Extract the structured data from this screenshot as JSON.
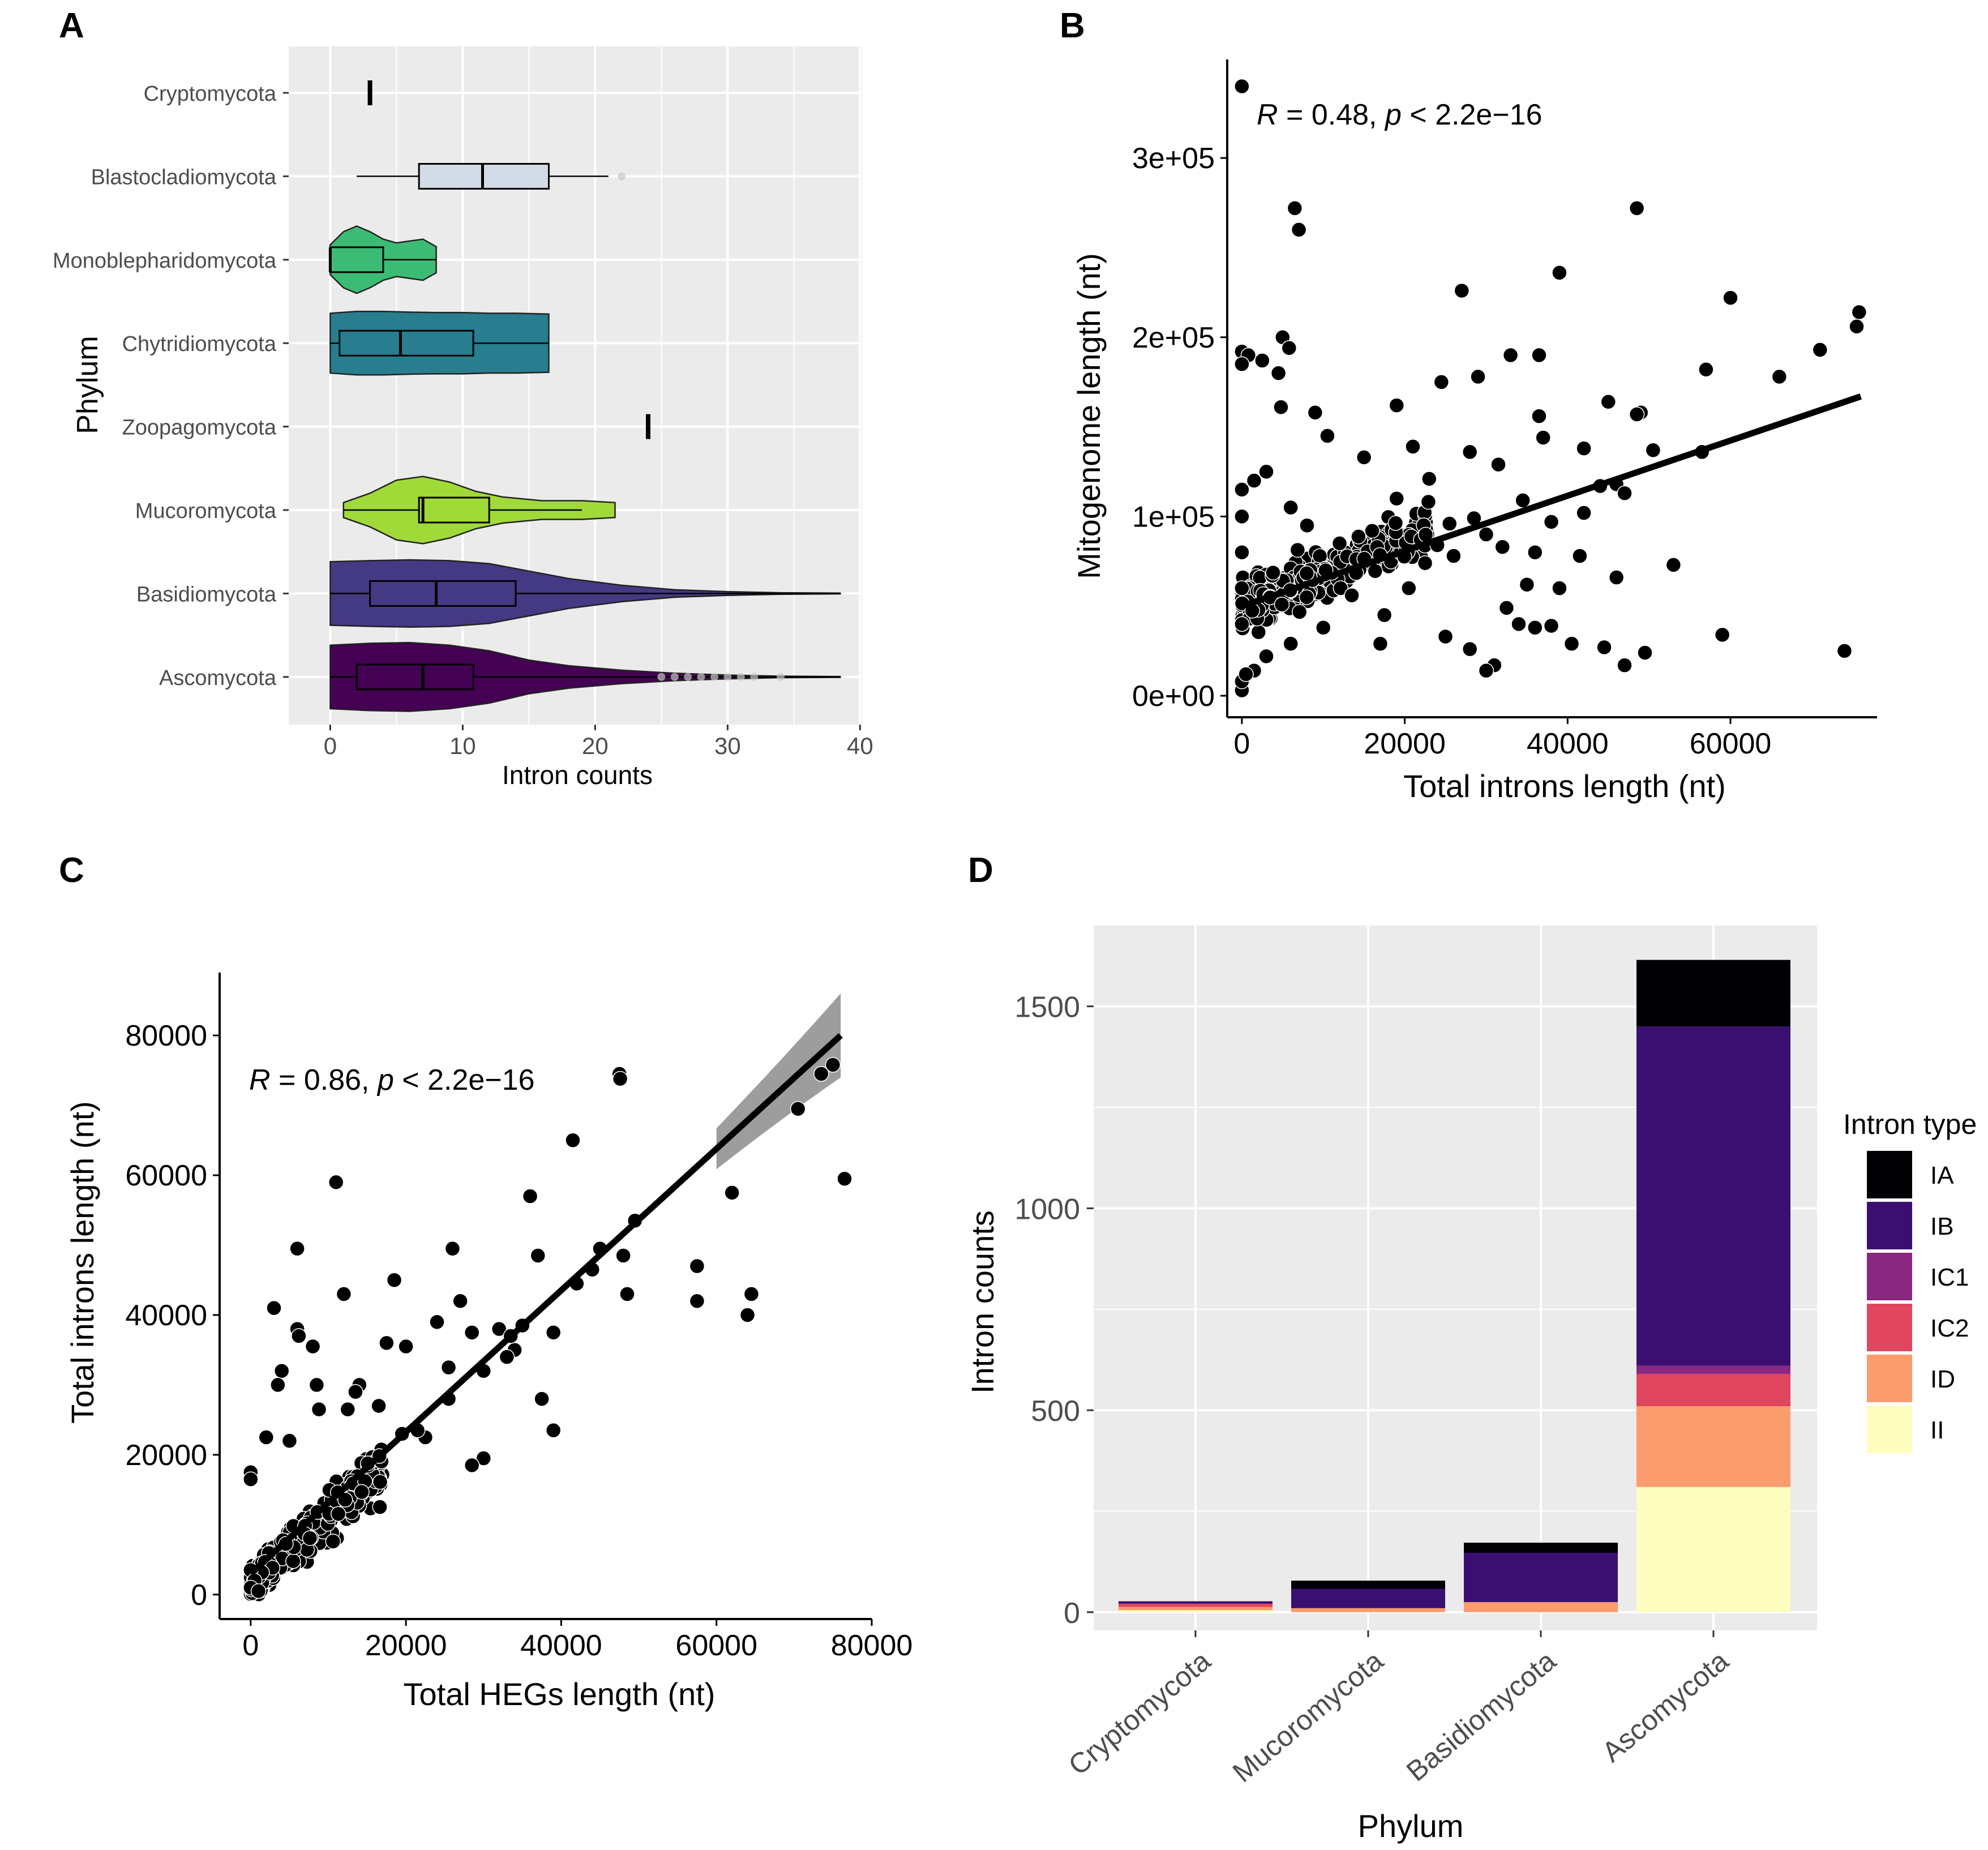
{
  "chart_data": [
    {
      "panel": "A",
      "type": "violin",
      "xlabel": "Intron counts",
      "ylabel": "Phylum",
      "xlim": [
        -1,
        40
      ],
      "xticks": [
        0,
        10,
        20,
        30,
        40
      ],
      "grid": true,
      "categories": [
        {
          "name": "Cryptomycota",
          "color": "#000000",
          "single": 3
        },
        {
          "name": "Blastocladiomycota",
          "color": "#d3dbe6",
          "box": {
            "min": 2,
            "q1": 6.7,
            "median": 11.5,
            "q3": 16.5,
            "max": 21
          },
          "outliers": [
            22
          ]
        },
        {
          "name": "Monoblepharidomycota",
          "color": "#3cbb75",
          "violin": [
            [
              0,
              0.4
            ],
            [
              1,
              0.75
            ],
            [
              2,
              0.9
            ],
            [
              3,
              0.75
            ],
            [
              4,
              0.55
            ],
            [
              5,
              0.45
            ],
            [
              6,
              0.5
            ],
            [
              7,
              0.55
            ],
            [
              8,
              0.35
            ]
          ],
          "box": {
            "min": 0,
            "q1": 0,
            "median": 0,
            "q3": 4,
            "max": 8
          }
        },
        {
          "name": "Chytridiomycota",
          "color": "#287d8e",
          "violin": [
            [
              0,
              0.8
            ],
            [
              2,
              0.85
            ],
            [
              4,
              0.85
            ],
            [
              6,
              0.83
            ],
            [
              8,
              0.82
            ],
            [
              10,
              0.82
            ],
            [
              12,
              0.8
            ],
            [
              14,
              0.8
            ],
            [
              16.5,
              0.78
            ]
          ],
          "box": {
            "min": 0,
            "q1": 0.7,
            "median": 5.3,
            "q3": 10.8,
            "max": 16.5
          }
        },
        {
          "name": "Zoopagomycota",
          "color": "#000000",
          "single": 24
        },
        {
          "name": "Mucoromycota",
          "color": "#a0da39",
          "violin": [
            [
              1,
              0.2
            ],
            [
              3,
              0.45
            ],
            [
              5,
              0.8
            ],
            [
              7,
              0.9
            ],
            [
              9,
              0.75
            ],
            [
              11,
              0.5
            ],
            [
              13,
              0.35
            ],
            [
              16,
              0.25
            ],
            [
              19,
              0.25
            ],
            [
              21.5,
              0.2
            ]
          ],
          "box": {
            "min": 1,
            "q1": 6.7,
            "median": 7,
            "q3": 12,
            "max": 19
          }
        },
        {
          "name": "Basidiomycota",
          "color": "#443983",
          "violin": [
            [
              0,
              0.85
            ],
            [
              3,
              0.88
            ],
            [
              6,
              0.9
            ],
            [
              9,
              0.88
            ],
            [
              12,
              0.8
            ],
            [
              15,
              0.6
            ],
            [
              18,
              0.4
            ],
            [
              22,
              0.22
            ],
            [
              26,
              0.1
            ],
            [
              30,
              0.05
            ],
            [
              34,
              0.02
            ],
            [
              38.5,
              0.01
            ]
          ],
          "box": {
            "min": 0,
            "q1": 3,
            "median": 8,
            "q3": 14,
            "max": 38.5
          }
        },
        {
          "name": "Ascomycota",
          "color": "#440154",
          "violin": [
            [
              0,
              0.85
            ],
            [
              3,
              0.9
            ],
            [
              6,
              0.92
            ],
            [
              9,
              0.85
            ],
            [
              12,
              0.7
            ],
            [
              15,
              0.45
            ],
            [
              18,
              0.3
            ],
            [
              22,
              0.18
            ],
            [
              26,
              0.1
            ],
            [
              30,
              0.05
            ],
            [
              34,
              0.02
            ],
            [
              38.5,
              0.01
            ]
          ],
          "box": {
            "min": 0,
            "q1": 2,
            "median": 7,
            "q3": 10.8,
            "max": 38.5
          },
          "outliers": [
            25,
            26,
            27,
            28,
            29,
            30,
            31,
            32,
            34
          ]
        }
      ]
    },
    {
      "panel": "B",
      "type": "scatter",
      "xlabel": "Total introns length (nt)",
      "ylabel": "Mitogenome length (nt)",
      "annotation": {
        "r_label": "R",
        "r_value": " = 0.48, ",
        "p_label": "p",
        "p_value": " < 2.2e−16"
      },
      "xlim": [
        -1800,
        78000
      ],
      "ylim": [
        -12000,
        355000
      ],
      "xticks": [
        0,
        20000,
        40000,
        60000
      ],
      "xtick_labels": [
        "0",
        "20000",
        "40000",
        "60000"
      ],
      "yticks": [
        0,
        100000,
        200000,
        300000
      ],
      "ytick_labels": [
        "0e+00",
        "1e+05",
        "2e+05",
        "3e+05"
      ],
      "fit": {
        "x0": 0,
        "y0": 50000,
        "x1": 76000,
        "y1": 167000,
        "ci_start": 4000,
        "ci_end": 17000
      },
      "points": [
        [
          0,
          340000
        ],
        [
          6500,
          272000
        ],
        [
          7000,
          260000
        ],
        [
          48500,
          272000
        ],
        [
          39000,
          236000
        ],
        [
          27000,
          226000
        ],
        [
          60000,
          222000
        ],
        [
          75800,
          214000
        ],
        [
          75500,
          206000
        ],
        [
          71000,
          193000
        ],
        [
          66000,
          178000
        ],
        [
          57000,
          182000
        ],
        [
          0,
          192000
        ],
        [
          800,
          190000
        ],
        [
          0,
          185000
        ],
        [
          2500,
          187000
        ],
        [
          5000,
          200000
        ],
        [
          5800,
          194000
        ],
        [
          33000,
          190000
        ],
        [
          36500,
          190000
        ],
        [
          24500,
          175000
        ],
        [
          29000,
          178000
        ],
        [
          19000,
          162000
        ],
        [
          45000,
          164000
        ],
        [
          49000,
          158000
        ],
        [
          48500,
          157000
        ],
        [
          36500,
          156000
        ],
        [
          42000,
          138000
        ],
        [
          50500,
          137000
        ],
        [
          56500,
          136000
        ],
        [
          4500,
          180000
        ],
        [
          4800,
          161000
        ],
        [
          9000,
          158000
        ],
        [
          10500,
          145000
        ],
        [
          15000,
          133000
        ],
        [
          21000,
          139000
        ],
        [
          37000,
          144000
        ],
        [
          28000,
          136000
        ],
        [
          31500,
          129000
        ],
        [
          23000,
          121000
        ],
        [
          34500,
          109000
        ],
        [
          38000,
          97000
        ],
        [
          42000,
          102000
        ],
        [
          46000,
          118000
        ],
        [
          47000,
          113000
        ],
        [
          53000,
          73000
        ],
        [
          59000,
          34000
        ],
        [
          74000,
          25000
        ],
        [
          49500,
          24000
        ],
        [
          47000,
          17000
        ],
        [
          44500,
          27000
        ],
        [
          40500,
          29000
        ],
        [
          38000,
          39000
        ],
        [
          36000,
          38000
        ],
        [
          34000,
          40000
        ],
        [
          32500,
          49000
        ],
        [
          31000,
          17000
        ],
        [
          30000,
          14000
        ],
        [
          28000,
          26000
        ],
        [
          25000,
          33000
        ],
        [
          35000,
          62000
        ],
        [
          39000,
          60000
        ],
        [
          46000,
          66000
        ],
        [
          41500,
          78000
        ],
        [
          36000,
          80000
        ],
        [
          32000,
          83000
        ],
        [
          30000,
          90000
        ],
        [
          28500,
          99000
        ],
        [
          25500,
          96000
        ],
        [
          22500,
          74000
        ],
        [
          20500,
          60000
        ],
        [
          17500,
          45000
        ],
        [
          17000,
          29000
        ],
        [
          13500,
          56000
        ],
        [
          10000,
          38000
        ],
        [
          6000,
          29000
        ],
        [
          3000,
          22000
        ],
        [
          1500,
          14000
        ],
        [
          0,
          3000
        ],
        [
          0,
          8000
        ],
        [
          500,
          12000
        ],
        [
          0,
          40000
        ],
        [
          0,
          60000
        ],
        [
          0,
          80000
        ],
        [
          0,
          100000
        ],
        [
          0,
          115000
        ],
        [
          1500,
          120000
        ],
        [
          3000,
          125000
        ],
        [
          6000,
          105000
        ],
        [
          8000,
          95000
        ],
        [
          12000,
          85000
        ],
        [
          16000,
          92000
        ],
        [
          19000,
          110000
        ],
        [
          24000,
          84000
        ],
        [
          26000,
          78000
        ],
        [
          44000,
          117000
        ]
      ],
      "dense_cloud": {
        "x_range": [
          0,
          23000
        ],
        "center_slope": 1.9,
        "count": 380
      }
    },
    {
      "panel": "C",
      "type": "scatter",
      "xlabel": "Total HEGs length (nt)",
      "ylabel": "Total introns length (nt)",
      "annotation": {
        "r_label": "R",
        "r_value": " = 0.86, ",
        "p_label": "p",
        "p_value": " < 2.2e−16"
      },
      "xlim": [
        -4000,
        80000
      ],
      "ylim": [
        -3500,
        89000
      ],
      "xticks": [
        0,
        20000,
        40000,
        60000,
        80000
      ],
      "xtick_labels": [
        "0",
        "20000",
        "40000",
        "60000",
        "80000"
      ],
      "yticks": [
        0,
        20000,
        40000,
        60000,
        80000
      ],
      "ytick_labels": [
        "0",
        "20000",
        "40000",
        "60000",
        "80000"
      ],
      "fit": {
        "x0": 0,
        "y0": 3000,
        "x1": 76000,
        "y1": 80000,
        "ci_start": 60000,
        "ci_end": 76000
      },
      "points": [
        [
          47500,
          74500
        ],
        [
          47600,
          73800
        ],
        [
          73500,
          74500
        ],
        [
          75000,
          75800
        ],
        [
          70500,
          69500
        ],
        [
          76500,
          59500
        ],
        [
          11000,
          59000
        ],
        [
          41500,
          65000
        ],
        [
          36000,
          57000
        ],
        [
          62000,
          57500
        ],
        [
          57500,
          47000
        ],
        [
          57500,
          42000
        ],
        [
          64000,
          40000
        ],
        [
          64500,
          43000
        ],
        [
          48000,
          48500
        ],
        [
          48500,
          43000
        ],
        [
          49500,
          53500
        ],
        [
          45000,
          49500
        ],
        [
          44000,
          46500
        ],
        [
          42000,
          44500
        ],
        [
          37000,
          48500
        ],
        [
          39000,
          37500
        ],
        [
          37500,
          28000
        ],
        [
          39000,
          23500
        ],
        [
          35000,
          38500
        ],
        [
          34000,
          35000
        ],
        [
          32000,
          38000
        ],
        [
          30000,
          19500
        ],
        [
          28500,
          18500
        ],
        [
          26000,
          49500
        ],
        [
          24000,
          39000
        ],
        [
          25500,
          32500
        ],
        [
          22500,
          22500
        ],
        [
          20000,
          35500
        ],
        [
          18500,
          45000
        ],
        [
          17500,
          36000
        ],
        [
          16500,
          27000
        ],
        [
          14000,
          30000
        ],
        [
          12000,
          43000
        ],
        [
          6000,
          49500
        ],
        [
          6000,
          38000
        ],
        [
          6200,
          37000
        ],
        [
          3000,
          41000
        ],
        [
          4000,
          32000
        ],
        [
          3500,
          30000
        ],
        [
          5000,
          22000
        ],
        [
          8000,
          35500
        ],
        [
          8500,
          30000
        ],
        [
          8800,
          26500
        ],
        [
          13500,
          29000
        ],
        [
          2000,
          22500
        ],
        [
          21500,
          23500
        ],
        [
          19500,
          23000
        ],
        [
          25500,
          28000
        ],
        [
          12500,
          26500
        ],
        [
          28500,
          37500
        ],
        [
          27000,
          42000
        ],
        [
          30000,
          32000
        ],
        [
          33000,
          34000
        ],
        [
          33500,
          37000
        ],
        [
          0,
          17500
        ],
        [
          0,
          16500
        ],
        [
          0,
          3500
        ],
        [
          500,
          2000
        ],
        [
          0,
          1000
        ],
        [
          1000,
          500
        ]
      ],
      "dense_cloud": {
        "x_range": [
          0,
          17000
        ],
        "center_slope": 1.0,
        "count": 400
      }
    },
    {
      "panel": "D",
      "type": "stacked-bar",
      "xlabel": "Phylum",
      "ylabel": "Intron counts",
      "ylim": [
        -45,
        1700
      ],
      "yticks": [
        0,
        500,
        1000,
        1500
      ],
      "legend_title": "Intron type",
      "legend_position": "right",
      "series": [
        {
          "name": "II",
          "color": "#fcfdbf",
          "values": [
            5,
            0,
            0,
            310
          ]
        },
        {
          "name": "ID",
          "color": "#fc9b6b",
          "values": [
            8,
            10,
            25,
            200
          ]
        },
        {
          "name": "IC2",
          "color": "#e0475f",
          "values": [
            8,
            0,
            0,
            80
          ]
        },
        {
          "name": "IC1",
          "color": "#8a2781",
          "values": [
            0,
            0,
            0,
            20
          ]
        },
        {
          "name": "IB",
          "color": "#3b0f70",
          "values": [
            6,
            48,
            122,
            840
          ]
        },
        {
          "name": "IA",
          "color": "#000004",
          "values": [
            0,
            20,
            25,
            165
          ]
        }
      ],
      "categories": [
        "Cryptomycota",
        "Mucoromycota",
        "Basidiomycota",
        "Ascomycota"
      ]
    }
  ],
  "panel_labels": [
    "A",
    "B",
    "C",
    "D"
  ]
}
